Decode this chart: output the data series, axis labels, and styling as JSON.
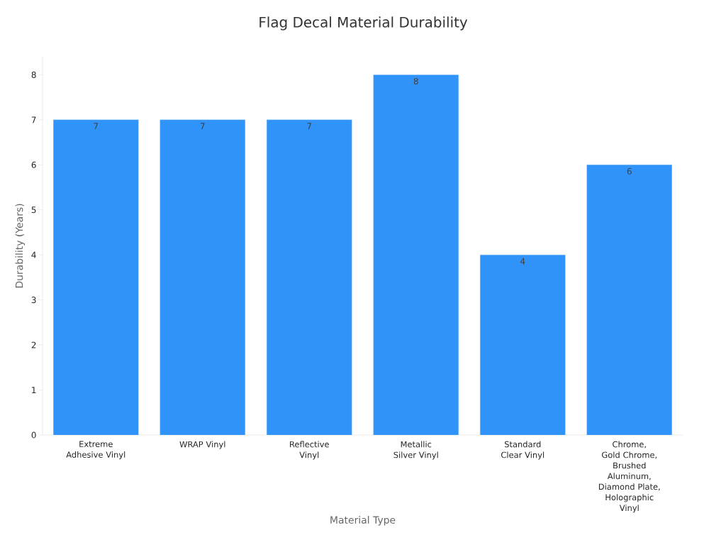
{
  "chart_data": {
    "type": "bar",
    "title": "Flag Decal Material Durability",
    "xlabel": "Material Type",
    "ylabel": "Durability (Years)",
    "categories": [
      "Extreme Adhesive Vinyl",
      "WRAP Vinyl",
      "Reflective Vinyl",
      "Metallic Silver Vinyl",
      "Standard Clear Vinyl",
      "Chrome, Gold Chrome, Brushed Aluminum, Diamond Plate, Holographic Vinyl"
    ],
    "values": [
      7,
      7,
      7,
      8,
      4,
      6
    ],
    "color": "#2f93f9",
    "ylim": [
      0,
      8.4
    ],
    "yticks": [
      0,
      1,
      2,
      3,
      4,
      5,
      6,
      7,
      8
    ],
    "data_labels": true,
    "grid": false
  }
}
